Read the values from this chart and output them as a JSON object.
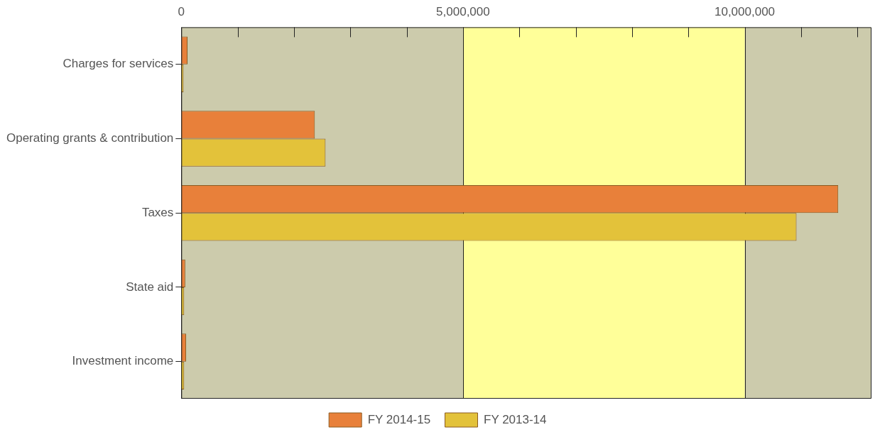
{
  "chart_data": {
    "type": "bar",
    "orientation": "horizontal",
    "categories": [
      "Charges for services",
      "Operating grants & contribution",
      "Taxes",
      "State aid",
      "Investment income"
    ],
    "series": [
      {
        "name": "FY 2014-15",
        "color": "#e8803a",
        "values": [
          110000,
          2370000,
          11660000,
          70000,
          85000
        ]
      },
      {
        "name": "FY 2013-14",
        "color": "#e3c23a",
        "values": [
          40000,
          2560000,
          10920000,
          50000,
          50000
        ]
      }
    ],
    "xlim": [
      0,
      12250000
    ],
    "xticks": [
      0,
      {
        "value": 1000000,
        "label": null
      },
      {
        "value": 2000000,
        "label": null
      },
      {
        "value": 3000000,
        "label": null
      },
      {
        "value": 4000000,
        "label": null
      },
      {
        "value": 5000000,
        "label": "5,000,000"
      },
      {
        "value": 6000000,
        "label": null
      },
      {
        "value": 7000000,
        "label": null
      },
      {
        "value": 8000000,
        "label": null
      },
      {
        "value": 9000000,
        "label": null
      },
      {
        "value": 10000000,
        "label": "10,000,000"
      },
      {
        "value": 11000000,
        "label": null
      },
      {
        "value": 12000000,
        "label": null
      }
    ],
    "bands": [
      {
        "axis": "x",
        "from": 5000000,
        "to": 10000000,
        "color": "#ffff99"
      }
    ],
    "grid": "x",
    "legend": "bottom"
  }
}
